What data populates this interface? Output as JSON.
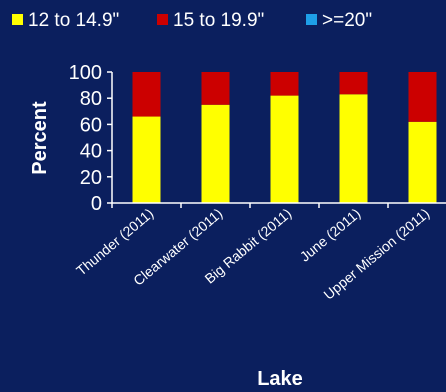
{
  "chart_data": {
    "type": "bar",
    "stacked": true,
    "xlabel": "Lake",
    "ylabel": "Percent",
    "ylim": [
      0,
      100
    ],
    "yticks": [
      "0",
      "20",
      "40",
      "60",
      "80",
      "100"
    ],
    "categories": [
      "Thunder (2011)",
      "Clearwater (2011)",
      "Big Rabbit (2011)",
      "June (2011)",
      "Upper Mission (2011)"
    ],
    "series": [
      {
        "name": "12 to 14.9\"",
        "color": "#ffff00",
        "values": [
          66,
          75,
          82,
          83,
          62
        ]
      },
      {
        "name": "15 to 19.9\"",
        "color": "#cc0000",
        "values": [
          34,
          25,
          18,
          17,
          38
        ]
      },
      {
        "name": ">=20\"",
        "color": "#1e9fe8",
        "values": [
          0,
          0,
          0,
          0,
          0
        ]
      }
    ],
    "legend_position": "top"
  }
}
